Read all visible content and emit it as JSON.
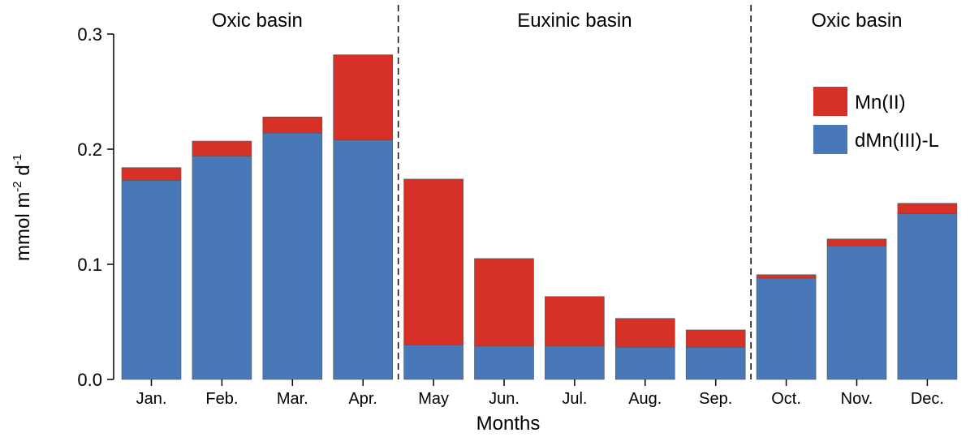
{
  "chart_data": {
    "type": "bar",
    "stacked": true,
    "categories": [
      "Jan.",
      "Feb.",
      "Mar.",
      "Apr.",
      "May",
      "Jun.",
      "Jul.",
      "Aug.",
      "Sep.",
      "Oct.",
      "Nov.",
      "Dec."
    ],
    "series": [
      {
        "name": "dMn(III)-L",
        "color": "#4878b8",
        "values": [
          0.173,
          0.194,
          0.214,
          0.208,
          0.03,
          0.029,
          0.029,
          0.028,
          0.028,
          0.088,
          0.116,
          0.144
        ]
      },
      {
        "name": "Mn(II)",
        "color": "#d63027",
        "values": [
          0.011,
          0.013,
          0.014,
          0.074,
          0.144,
          0.076,
          0.043,
          0.025,
          0.015,
          0.003,
          0.006,
          0.009
        ]
      }
    ],
    "xlabel": "Months",
    "ylabel": "mmol m-2 d-1",
    "ylabel_parts": {
      "base": "mmol m",
      "exp1": "-2",
      "mid": " d",
      "exp2": "-1"
    },
    "ylim": [
      0,
      0.3
    ],
    "yticks": [
      "0.0",
      "0.1",
      "0.2",
      "0.3"
    ],
    "ytick_values": [
      0,
      0.1,
      0.2,
      0.3
    ],
    "legend": {
      "placement": "top-right",
      "order": [
        "Mn(II)",
        "dMn(III)-L"
      ]
    },
    "grid": false,
    "regions": [
      {
        "label": "Oxic basin",
        "from": 0,
        "to": 3
      },
      {
        "label": "Euxinic basin",
        "from": 4,
        "to": 8
      },
      {
        "label": "Oxic basin",
        "from": 9,
        "to": 11
      }
    ],
    "dividers_after": [
      3,
      8
    ]
  }
}
